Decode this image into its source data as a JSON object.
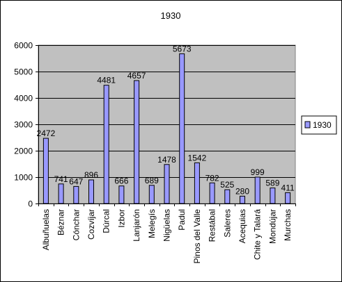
{
  "chart_data": {
    "type": "bar",
    "title": "1930",
    "categories": [
      "Albuñuelas",
      "Béznar",
      "Cónchar",
      "Cozvíjar",
      "Dúrcal",
      "Izbor",
      "Lanjarón",
      "Melegís",
      "Nigüelas",
      "Padul",
      "Pinos del Valle",
      "Restábal",
      "Saleres",
      "Acequias",
      "Chite y Talará",
      "Mondújar",
      "Murchas"
    ],
    "series": [
      {
        "name": "1930",
        "values": [
          2472,
          741,
          647,
          896,
          4481,
          666,
          4657,
          689,
          1478,
          5673,
          1542,
          782,
          525,
          280,
          999,
          589,
          411
        ]
      }
    ],
    "data_labels": [
      "2472",
      "741",
      "647",
      "896",
      "4481",
      "666",
      "4657",
      "689",
      "1478",
      "5673",
      "1542",
      "782",
      "525",
      "280",
      "999",
      "589",
      "411"
    ],
    "y_ticks": [
      "0",
      "1000",
      "2000",
      "3000",
      "4000",
      "5000",
      "6000"
    ],
    "ylim": [
      0,
      6000
    ],
    "grid": true,
    "legend_position": "right",
    "colors": {
      "bar_fill": "#9999ff",
      "bar_stroke": "#000000",
      "plot_background": "#c0c0c0",
      "gridline": "#000000"
    }
  }
}
